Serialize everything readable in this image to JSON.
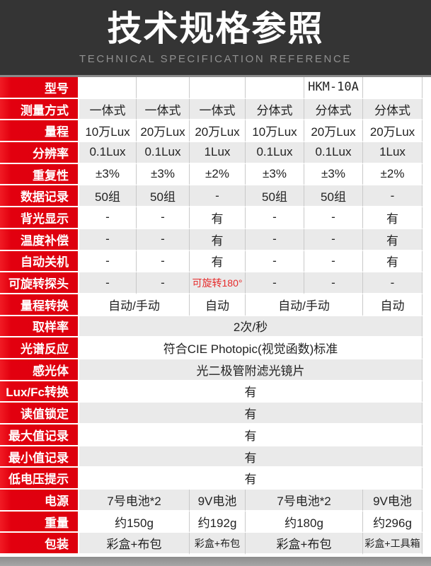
{
  "header": {
    "title": "技术规格参照",
    "subtitle": "TECHNICAL SPECIFICATION REFERENCE"
  },
  "colors": {
    "accent_red": "#e2000f",
    "hero_bg": "#343434",
    "subtitle_gray": "#909090",
    "shaded_cell_gray": "#eaeaea",
    "divider_gray": "#c9c9c9",
    "red_note_text": "#e62a2a",
    "bottom_bar_gray": "#9e9e9e",
    "highlight_model": "HKM-10A"
  },
  "table": {
    "rows": [
      {
        "key": "model",
        "label": "型号",
        "cells": [
          {
            "t": ""
          },
          {
            "t": ""
          },
          {
            "t": ""
          },
          {
            "t": ""
          },
          {
            "t": "HKM-10A"
          },
          {
            "t": ""
          }
        ]
      },
      {
        "key": "measure-mode",
        "label": "测量方式",
        "cells": [
          {
            "t": "一体式"
          },
          {
            "t": "一体式"
          },
          {
            "t": "一体式"
          },
          {
            "t": "分体式"
          },
          {
            "t": "分体式"
          },
          {
            "t": "分体式"
          }
        ]
      },
      {
        "key": "range",
        "label": "量程",
        "cells": [
          {
            "t": "10万Lux"
          },
          {
            "t": "20万Lux"
          },
          {
            "t": "20万Lux"
          },
          {
            "t": "10万Lux"
          },
          {
            "t": "20万Lux"
          },
          {
            "t": "20万Lux"
          }
        ]
      },
      {
        "key": "resolution",
        "label": "分辨率",
        "cells": [
          {
            "t": "0.1Lux"
          },
          {
            "t": "0.1Lux"
          },
          {
            "t": "1Lux"
          },
          {
            "t": "0.1Lux"
          },
          {
            "t": "0.1Lux"
          },
          {
            "t": "1Lux"
          }
        ]
      },
      {
        "key": "repeatability",
        "label": "重复性",
        "cells": [
          {
            "t": "±3%"
          },
          {
            "t": "±3%"
          },
          {
            "t": "±2%"
          },
          {
            "t": "±3%"
          },
          {
            "t": "±3%"
          },
          {
            "t": "±2%"
          }
        ]
      },
      {
        "key": "data-logging",
        "label": "数据记录",
        "cells": [
          {
            "t": "50组"
          },
          {
            "t": "50组"
          },
          {
            "t": "-"
          },
          {
            "t": "50组"
          },
          {
            "t": "50组"
          },
          {
            "t": "-"
          }
        ]
      },
      {
        "key": "backlight",
        "label": "背光显示",
        "cells": [
          {
            "t": "-"
          },
          {
            "t": "-"
          },
          {
            "t": "有"
          },
          {
            "t": "-"
          },
          {
            "t": "-"
          },
          {
            "t": "有"
          }
        ]
      },
      {
        "key": "temp-compensation",
        "label": "温度补偿",
        "cells": [
          {
            "t": "-"
          },
          {
            "t": "-"
          },
          {
            "t": "有"
          },
          {
            "t": "-"
          },
          {
            "t": "-"
          },
          {
            "t": "有"
          }
        ]
      },
      {
        "key": "auto-off",
        "label": "自动关机",
        "cells": [
          {
            "t": "-"
          },
          {
            "t": "-"
          },
          {
            "t": "有"
          },
          {
            "t": "-"
          },
          {
            "t": "-"
          },
          {
            "t": "有"
          }
        ]
      },
      {
        "key": "rotatable-probe",
        "label": "可旋转探头",
        "cells": [
          {
            "t": "-"
          },
          {
            "t": "-"
          },
          {
            "t": "可旋转180°",
            "red": true
          },
          {
            "t": "-"
          },
          {
            "t": "-"
          },
          {
            "t": "-"
          }
        ]
      },
      {
        "key": "range-switch",
        "label": "量程转换",
        "cells": [
          {
            "t": "自动/手动",
            "span": 2
          },
          {
            "t": "自动"
          },
          {
            "t": "自动/手动",
            "span": 2
          },
          {
            "t": "自动"
          }
        ]
      },
      {
        "key": "sampling-rate",
        "label": "取样率",
        "cells": [
          {
            "t": "2次/秒",
            "span": 6
          }
        ]
      },
      {
        "key": "spectral-response",
        "label": "光谱反应",
        "cells": [
          {
            "t": "符合CIE Photopic(视觉函数)标准",
            "span": 6
          }
        ]
      },
      {
        "key": "sensor",
        "label": "感光体",
        "cells": [
          {
            "t": "光二极管附滤光镜片",
            "span": 6
          }
        ]
      },
      {
        "key": "lux-fc-convert",
        "label": "Lux/Fc转换",
        "cells": [
          {
            "t": "有",
            "span": 6
          }
        ]
      },
      {
        "key": "reading-hold",
        "label": "读值锁定",
        "cells": [
          {
            "t": "有",
            "span": 6
          }
        ]
      },
      {
        "key": "max-record",
        "label": "最大值记录",
        "cells": [
          {
            "t": "有",
            "span": 6
          }
        ]
      },
      {
        "key": "min-record",
        "label": "最小值记录",
        "cells": [
          {
            "t": "有",
            "span": 6
          }
        ]
      },
      {
        "key": "low-battery",
        "label": "低电压提示",
        "cells": [
          {
            "t": "有",
            "span": 6
          }
        ]
      },
      {
        "key": "power",
        "label": "电源",
        "cells": [
          {
            "t": "7号电池*2",
            "span": 2
          },
          {
            "t": "9V电池"
          },
          {
            "t": "7号电池*2",
            "span": 2
          },
          {
            "t": "9V电池"
          }
        ]
      },
      {
        "key": "weight",
        "label": "重量",
        "cells": [
          {
            "t": "约150g",
            "span": 2
          },
          {
            "t": "约192g"
          },
          {
            "t": "约180g",
            "span": 2
          },
          {
            "t": "约296g"
          }
        ]
      },
      {
        "key": "packaging",
        "label": "包装",
        "cells": [
          {
            "t": "彩盒+布包",
            "span": 2
          },
          {
            "t": "彩盒+布包"
          },
          {
            "t": "彩盒+布包",
            "span": 2
          },
          {
            "t": "彩盒+工具箱"
          }
        ]
      }
    ]
  }
}
